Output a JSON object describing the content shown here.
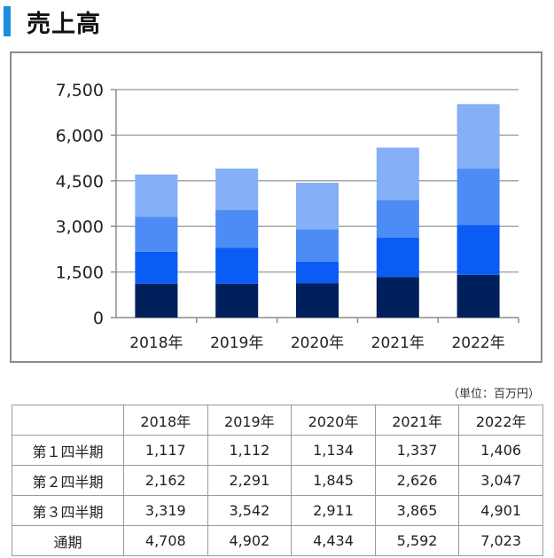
{
  "title": "売上高",
  "unit_note": "（単位：百万円）",
  "colors": {
    "accent": "#1a8fe0",
    "q1": "#00205b",
    "q2": "#0a5cf5",
    "q3": "#4d8cf5",
    "q4": "#85aff6"
  },
  "chart_data": {
    "type": "bar",
    "stacked": true,
    "categories": [
      "2018年",
      "2019年",
      "2020年",
      "2021年",
      "2022年"
    ],
    "series": [
      {
        "values": [
          1117,
          1112,
          1134,
          1337,
          1406
        ]
      },
      {
        "values": [
          1045,
          1179,
          711,
          1289,
          1641
        ]
      },
      {
        "values": [
          1157,
          1251,
          1066,
          1239,
          1854
        ]
      },
      {
        "values": [
          1389,
          1360,
          1523,
          1727,
          2122
        ]
      }
    ],
    "ylim": [
      0,
      7500
    ],
    "yticks": [
      "0",
      "1,500",
      "3,000",
      "4,500",
      "6,000",
      "7,500"
    ],
    "grid": true,
    "legend": "none"
  },
  "table": {
    "headers": [
      "",
      "2018年",
      "2019年",
      "2020年",
      "2021年",
      "2022年"
    ],
    "rows": [
      {
        "label": "第１四半期",
        "values": [
          "1,117",
          "1,112",
          "1,134",
          "1,337",
          "1,406"
        ]
      },
      {
        "label": "第２四半期",
        "values": [
          "2,162",
          "2,291",
          "1,845",
          "2,626",
          "3,047"
        ]
      },
      {
        "label": "第３四半期",
        "values": [
          "3,319",
          "3,542",
          "2,911",
          "3,865",
          "4,901"
        ]
      },
      {
        "label": "通期",
        "values": [
          "4,708",
          "4,902",
          "4,434",
          "5,592",
          "7,023"
        ]
      }
    ]
  }
}
